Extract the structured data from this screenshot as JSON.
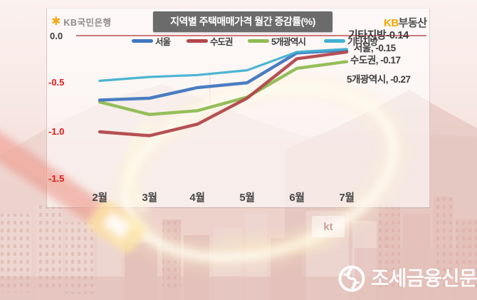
{
  "header": {
    "bank_name": "KB국민은행",
    "title": "지역별 주택매매가격 월간 증감률(%)",
    "brand_kb": "KB",
    "brand_rest": "부동산"
  },
  "chart_data": {
    "type": "line",
    "title": "지역별 주택매매가격 월간 증감률(%)",
    "xlabel": "",
    "ylabel": "",
    "ylim": [
      -1.5,
      0.0
    ],
    "yticks": [
      "0.0",
      "-0.5",
      "-1.0",
      "-1.5"
    ],
    "grid": "zero-line-only",
    "legend_position": "top",
    "categories": [
      "2월",
      "3월",
      "4월",
      "5월",
      "6월",
      "7월"
    ],
    "series": [
      {
        "name": "서울",
        "color": "#3f76c0",
        "values": [
          -0.67,
          -0.65,
          -0.54,
          -0.49,
          -0.18,
          -0.15
        ]
      },
      {
        "name": "수도권",
        "color": "#b2464b",
        "values": [
          -1.0,
          -1.04,
          -0.92,
          -0.65,
          -0.24,
          -0.17
        ]
      },
      {
        "name": "5개광역시",
        "color": "#8fbb51",
        "values": [
          -0.69,
          -0.82,
          -0.78,
          -0.64,
          -0.34,
          -0.27
        ]
      },
      {
        "name": "기타지방",
        "color": "#41b1d0",
        "values": [
          -0.47,
          -0.43,
          -0.41,
          -0.36,
          -0.17,
          -0.14
        ]
      }
    ]
  },
  "annotations": [
    {
      "label": "기타지방-0.14"
    },
    {
      "label": "서울, -0.15"
    },
    {
      "label": "수도권, -0.17"
    },
    {
      "label": "5개광역시, -0.27"
    }
  ],
  "watermarks": {
    "kt_sign": "kt",
    "press_name": "조세금융신문"
  },
  "colors": {
    "seoul": "#3f76c0",
    "sudogwon": "#b2464b",
    "metro5": "#8fbb51",
    "gita": "#41b1d0",
    "ytick_red": "#e11b1b",
    "zero_line": "#c2555a",
    "title_bg": "#6b6b6b",
    "kb_orange": "#f5a800"
  }
}
